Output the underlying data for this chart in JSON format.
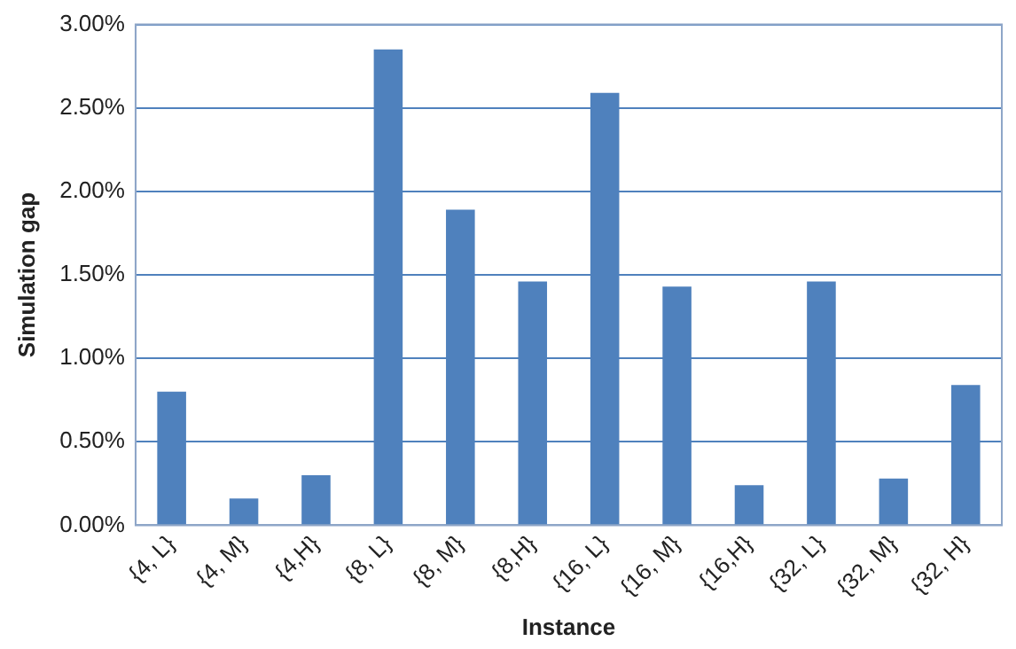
{
  "chart_data": {
    "type": "bar",
    "xlabel": "Instance",
    "ylabel": "Simulation gap",
    "categories": [
      "{4, L}",
      "{4, M}",
      "{4,H}",
      "{8, L}",
      "{8, M}",
      "{8,H}",
      "{16, L}",
      "{16, M}",
      "{16,H}",
      "{32, L}",
      "{32, M}",
      "{32, H}"
    ],
    "values": [
      0.8,
      0.16,
      0.3,
      2.85,
      1.89,
      1.46,
      2.59,
      1.43,
      0.24,
      1.46,
      0.28,
      0.84
    ],
    "color": "#4f81bd",
    "ylim": [
      0,
      3
    ],
    "yticks": [
      {
        "value": 0,
        "label": "0.00%"
      },
      {
        "value": 0.5,
        "label": "0.50%"
      },
      {
        "value": 1,
        "label": "1.00%"
      },
      {
        "value": 1.5,
        "label": "1.50%"
      },
      {
        "value": 2,
        "label": "2.00%"
      },
      {
        "value": 2.5,
        "label": "2.50%"
      },
      {
        "value": 3,
        "label": "3.00%"
      }
    ],
    "grid": "y"
  }
}
